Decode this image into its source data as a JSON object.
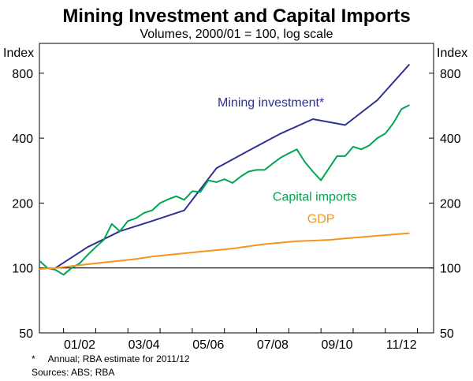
{
  "chart_data": {
    "type": "line",
    "title": "Mining Investment and Capital Imports",
    "subtitle": "Volumes, 2000/01 = 100, log scale",
    "ylabel_left": "Index",
    "ylabel_right": "Index",
    "yscale": "log",
    "ylim": [
      50,
      1100
    ],
    "y_ticks": [
      50,
      100,
      200,
      400,
      800
    ],
    "xlim": [
      2000.25,
      2012.5
    ],
    "x_ticks": [
      {
        "value": 2001.5,
        "label": "01/02"
      },
      {
        "value": 2003.5,
        "label": "03/04"
      },
      {
        "value": 2005.5,
        "label": "05/06"
      },
      {
        "value": 2007.5,
        "label": "07/08"
      },
      {
        "value": 2009.5,
        "label": "09/10"
      },
      {
        "value": 2011.5,
        "label": "11/12"
      }
    ],
    "reference_line": 100,
    "series": [
      {
        "name": "Mining investment*",
        "color": "#2e3192",
        "x": [
          2000.75,
          2001.75,
          2002.75,
          2003.75,
          2004.75,
          2005.75,
          2006.75,
          2007.75,
          2008.75,
          2009.75,
          2010.75,
          2011.75
        ],
        "values": [
          100,
          125,
          148,
          165,
          185,
          290,
          350,
          420,
          490,
          460,
          600,
          880
        ]
      },
      {
        "name": "Capital imports",
        "color": "#00a651",
        "x": [
          2000.25,
          2000.5,
          2000.75,
          2001.0,
          2001.25,
          2001.5,
          2001.75,
          2002.0,
          2002.25,
          2002.5,
          2002.75,
          2003.0,
          2003.25,
          2003.5,
          2003.75,
          2004.0,
          2004.25,
          2004.5,
          2004.75,
          2005.0,
          2005.25,
          2005.5,
          2005.75,
          2006.0,
          2006.25,
          2006.5,
          2006.75,
          2007.0,
          2007.25,
          2007.5,
          2007.75,
          2008.0,
          2008.25,
          2008.5,
          2008.75,
          2009.0,
          2009.25,
          2009.5,
          2009.75,
          2010.0,
          2010.25,
          2010.5,
          2010.75,
          2011.0,
          2011.25,
          2011.5,
          2011.75
        ],
        "values": [
          108,
          100,
          98,
          93,
          100,
          105,
          115,
          125,
          135,
          160,
          148,
          165,
          170,
          180,
          185,
          200,
          208,
          215,
          207,
          227,
          225,
          255,
          250,
          258,
          248,
          265,
          280,
          285,
          285,
          305,
          325,
          340,
          355,
          310,
          280,
          255,
          290,
          330,
          330,
          365,
          355,
          370,
          400,
          420,
          470,
          545,
          570
        ]
      },
      {
        "name": "GDP",
        "color": "#f7941d",
        "x": [
          2000.25,
          2000.75,
          2001.25,
          2001.75,
          2002.25,
          2002.75,
          2003.25,
          2003.75,
          2004.25,
          2004.75,
          2005.25,
          2005.75,
          2006.25,
          2006.75,
          2007.25,
          2007.75,
          2008.25,
          2008.75,
          2009.25,
          2009.75,
          2010.25,
          2010.75,
          2011.25,
          2011.75
        ],
        "values": [
          99,
          100,
          102,
          104,
          106,
          108,
          110,
          113,
          115,
          117,
          119,
          121,
          123,
          126,
          129,
          131,
          133,
          134,
          135,
          137,
          139,
          141,
          143,
          145
        ]
      }
    ],
    "annotations": [
      {
        "text": "Mining investment*",
        "series": "Mining investment*"
      },
      {
        "text": "Capital imports",
        "series": "Capital imports"
      },
      {
        "text": "GDP",
        "series": "GDP"
      }
    ]
  },
  "footnotes": {
    "note": "*     Annual; RBA estimate for 2011/12",
    "sources": "Sources: ABS; RBA"
  }
}
